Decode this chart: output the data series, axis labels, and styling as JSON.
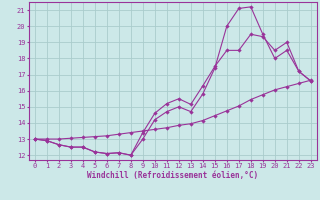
{
  "xlabel": "Windchill (Refroidissement éolien,°C)",
  "ylabel": "",
  "bg_color": "#cce8e8",
  "grid_color": "#aacccc",
  "line_color": "#993399",
  "xlim": [
    -0.5,
    23.5
  ],
  "ylim": [
    11.7,
    21.5
  ],
  "xticks": [
    0,
    1,
    2,
    3,
    4,
    5,
    6,
    7,
    8,
    9,
    10,
    11,
    12,
    13,
    14,
    15,
    16,
    17,
    18,
    19,
    20,
    21,
    22,
    23
  ],
  "yticks": [
    12,
    13,
    14,
    15,
    16,
    17,
    18,
    19,
    20,
    21
  ],
  "line1_x": [
    0,
    1,
    2,
    3,
    4,
    5,
    6,
    7,
    8,
    9,
    10,
    11,
    12,
    13,
    14,
    15,
    16,
    17,
    18,
    19,
    20,
    21,
    22,
    23
  ],
  "line1_y": [
    13.0,
    12.9,
    12.65,
    12.5,
    12.5,
    12.2,
    12.1,
    12.15,
    12.0,
    13.4,
    14.6,
    15.2,
    15.5,
    15.15,
    16.3,
    17.5,
    18.5,
    18.5,
    19.5,
    19.35,
    18.5,
    19.0,
    17.2,
    16.6
  ],
  "line2_x": [
    0,
    1,
    2,
    3,
    4,
    5,
    6,
    7,
    8,
    9,
    10,
    11,
    12,
    13,
    14,
    15,
    16,
    17,
    18,
    19,
    20,
    21,
    22,
    23
  ],
  "line2_y": [
    13.0,
    12.9,
    12.65,
    12.5,
    12.5,
    12.2,
    12.1,
    12.15,
    12.0,
    13.0,
    14.2,
    14.7,
    15.0,
    14.7,
    15.8,
    17.4,
    20.0,
    21.1,
    21.2,
    19.5,
    18.0,
    18.5,
    17.2,
    16.6
  ],
  "line3_x": [
    0,
    1,
    2,
    3,
    4,
    5,
    6,
    7,
    8,
    9,
    10,
    11,
    12,
    13,
    14,
    15,
    16,
    17,
    18,
    19,
    20,
    21,
    22,
    23
  ],
  "line3_y": [
    13.0,
    13.0,
    13.0,
    13.05,
    13.1,
    13.15,
    13.2,
    13.3,
    13.4,
    13.5,
    13.6,
    13.7,
    13.85,
    13.95,
    14.15,
    14.45,
    14.75,
    15.05,
    15.45,
    15.75,
    16.05,
    16.25,
    16.45,
    16.65
  ],
  "xlabel_fontsize": 5.5,
  "tick_fontsize": 5
}
